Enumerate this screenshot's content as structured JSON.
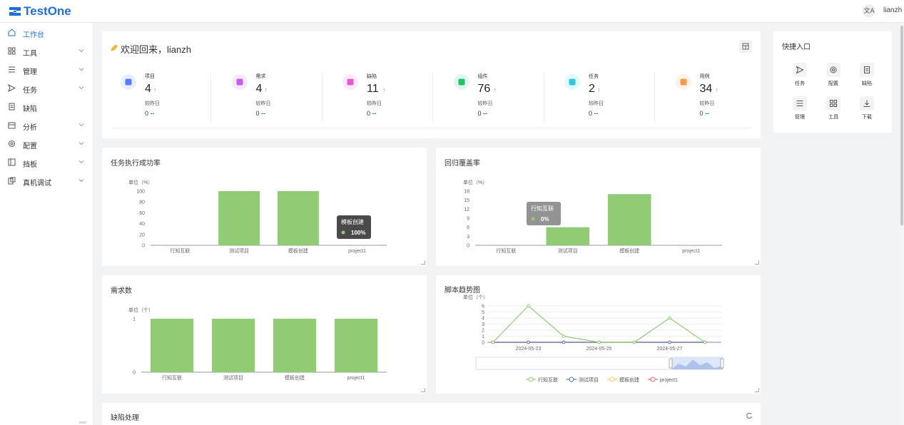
{
  "header": {
    "app_name": "TestOne",
    "lang_label": "文A",
    "username": "lianzh"
  },
  "sidebar": {
    "items": [
      {
        "label": "工作台",
        "icon": "home-icon",
        "active": true,
        "chevron": false
      },
      {
        "label": "工具",
        "icon": "grid-icon",
        "active": false,
        "chevron": true
      },
      {
        "label": "管理",
        "icon": "list-icon",
        "active": false,
        "chevron": true
      },
      {
        "label": "任务",
        "icon": "send-icon",
        "active": false,
        "chevron": true
      },
      {
        "label": "缺陷",
        "icon": "file-icon",
        "active": false,
        "chevron": false
      },
      {
        "label": "分析",
        "icon": "calendar-icon",
        "active": false,
        "chevron": true
      },
      {
        "label": "配置",
        "icon": "gear-icon",
        "active": false,
        "chevron": true
      },
      {
        "label": "挡板",
        "icon": "panel-icon",
        "active": false,
        "chevron": true
      },
      {
        "label": "真机调试",
        "icon": "device-icon",
        "active": false,
        "chevron": true
      }
    ]
  },
  "welcome": {
    "text": "欢迎回来，lianzh"
  },
  "stats": [
    {
      "label": "项目",
      "value": "4",
      "compare_label": "较昨日",
      "compare_value": "0",
      "compare_suffix": "--",
      "color": "#5b7cf5",
      "icon": "project-icon"
    },
    {
      "label": "需求",
      "value": "4",
      "compare_label": "较昨日",
      "compare_value": "0",
      "compare_suffix": "--",
      "color": "#c45cf0",
      "icon": "requirement-icon"
    },
    {
      "label": "缺陷",
      "value": "11",
      "compare_label": "较昨日",
      "compare_value": "0",
      "compare_suffix": "--",
      "color": "#e45ad2",
      "icon": "bug-icon"
    },
    {
      "label": "组件",
      "value": "76",
      "compare_label": "较昨日",
      "compare_value": "0",
      "compare_suffix": "--",
      "color": "#23c16b",
      "icon": "component-icon"
    },
    {
      "label": "任务",
      "value": "2",
      "compare_label": "较昨日",
      "compare_value": "0",
      "compare_suffix": "--",
      "color": "#2ec9e0",
      "icon": "task-icon"
    },
    {
      "label": "用例",
      "value": "34",
      "compare_label": "较昨日",
      "compare_value": "0",
      "compare_suffix": "--",
      "color": "#f59a4a",
      "icon": "testcase-icon"
    }
  ],
  "quick_access": {
    "title": "快捷入口",
    "items": [
      {
        "label": "任务",
        "icon": "send-icon"
      },
      {
        "label": "配置",
        "icon": "gear-icon"
      },
      {
        "label": "缺陷",
        "icon": "file-icon"
      },
      {
        "label": "管理",
        "icon": "list-icon"
      },
      {
        "label": "工具",
        "icon": "grid-icon"
      },
      {
        "label": "下载",
        "icon": "download-icon"
      }
    ]
  },
  "cards": {
    "task_success": {
      "title": "任务执行成功率"
    },
    "regression": {
      "title": "回归覆盖率"
    },
    "requirements": {
      "title": "需求数"
    },
    "script_trend": {
      "title": "脚本趋势图"
    },
    "defects": {
      "title": "缺陷处理"
    }
  },
  "chart_data": [
    {
      "type": "bar",
      "title": "任务执行成功率",
      "ylabel": "单位（%）",
      "categories": [
        "行知互联",
        "测试项目",
        "模板创建",
        "project1"
      ],
      "values": [
        0,
        100,
        100,
        0
      ],
      "ylim": [
        0,
        100
      ],
      "yticks": [
        "0",
        "20",
        "40",
        "60",
        "80",
        "100"
      ],
      "bar_color": "#91cc75",
      "tooltip": {
        "category": "模板创建",
        "value": "100%"
      }
    },
    {
      "type": "bar",
      "title": "回归覆盖率",
      "ylabel": "单位（%）",
      "categories": [
        "行知互联",
        "测试项目",
        "模板创建",
        "project1"
      ],
      "values": [
        0,
        6,
        17,
        0
      ],
      "ylim": [
        0,
        18
      ],
      "yticks": [
        "0",
        "3",
        "6",
        "9",
        "12",
        "15",
        "18"
      ],
      "bar_color": "#91cc75",
      "tooltip": {
        "category": "行知互联",
        "value": "0%"
      }
    },
    {
      "type": "bar",
      "title": "需求数",
      "ylabel": "单位（个）",
      "categories": [
        "行知互联",
        "测试项目",
        "模板创建",
        "project1"
      ],
      "values": [
        1,
        1,
        1,
        1
      ],
      "ylim": [
        0,
        1
      ],
      "yticks": [
        "0",
        "1"
      ],
      "bar_color": "#91cc75"
    },
    {
      "type": "line",
      "title": "脚本趋势图",
      "ylabel": "单位（个）",
      "x": [
        "2024-05-22",
        "2024-05-23",
        "2024-05-24",
        "2024-05-25",
        "2024-05-26",
        "2024-05-27",
        "2024-05-28"
      ],
      "xtick_labels": [
        "2024-05-23",
        "2024-05-25",
        "2024-05-27"
      ],
      "ylim": [
        0,
        6
      ],
      "yticks": [
        "0",
        "1",
        "2",
        "3",
        "4",
        "5",
        "6"
      ],
      "series": [
        {
          "name": "行知互联",
          "color": "#91cc75",
          "values": [
            0,
            6,
            1,
            0,
            0,
            4,
            0
          ]
        },
        {
          "name": "测试项目",
          "color": "#5470c6",
          "values": [
            0,
            0,
            0,
            0,
            0,
            0,
            0
          ]
        },
        {
          "name": "模板创建",
          "color": "#fac858",
          "values": [
            0,
            0,
            0,
            0,
            0,
            0,
            0
          ]
        },
        {
          "name": "project1",
          "color": "#ee6666",
          "values": [
            0,
            0,
            0,
            0,
            0,
            0,
            0
          ]
        }
      ],
      "legend_position": "bottom"
    }
  ]
}
